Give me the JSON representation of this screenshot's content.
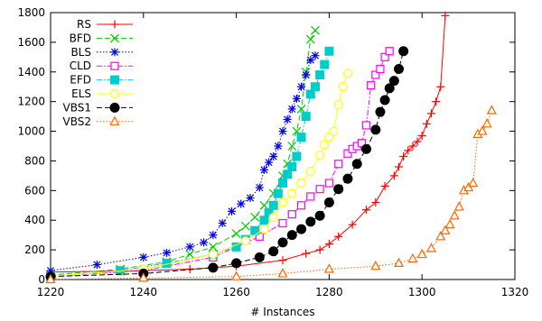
{
  "chart_data": {
    "type": "line",
    "title": "",
    "xlabel": "# Instances",
    "ylabel": "",
    "xlim": [
      1220,
      1320
    ],
    "ylim": [
      0,
      1800
    ],
    "xticks": [
      1220,
      1240,
      1260,
      1280,
      1300,
      1320
    ],
    "yticks": [
      0,
      200,
      400,
      600,
      800,
      1000,
      1200,
      1400,
      1600,
      1800
    ],
    "grid": false,
    "legend_position": "top-left",
    "series": [
      {
        "name": "RS",
        "color": "#ff0000",
        "marker": "plus",
        "dash": "solid",
        "x": [
          1220,
          1240,
          1250,
          1260,
          1270,
          1275,
          1278,
          1280,
          1282,
          1285,
          1288,
          1290,
          1292,
          1294,
          1295,
          1296,
          1297,
          1298,
          1299,
          1300,
          1301,
          1302,
          1303,
          1304,
          1305
        ],
        "y": [
          50,
          60,
          70,
          90,
          130,
          175,
          200,
          240,
          290,
          370,
          470,
          520,
          630,
          700,
          760,
          830,
          870,
          900,
          930,
          970,
          1050,
          1120,
          1200,
          1300,
          1780
        ]
      },
      {
        "name": "BFD",
        "color": "#00cc00",
        "marker": "x",
        "dash": "dashed",
        "x": [
          1220,
          1235,
          1245,
          1250,
          1255,
          1260,
          1262,
          1264,
          1266,
          1268,
          1270,
          1271,
          1272,
          1273,
          1274,
          1275,
          1276,
          1277
        ],
        "y": [
          30,
          70,
          120,
          170,
          220,
          310,
          360,
          420,
          500,
          580,
          700,
          780,
          900,
          1000,
          1150,
          1400,
          1620,
          1680
        ]
      },
      {
        "name": "BLS",
        "color": "#0000ee",
        "marker": "star",
        "dash": "dotted",
        "x": [
          1220,
          1230,
          1240,
          1245,
          1250,
          1253,
          1255,
          1257,
          1259,
          1261,
          1263,
          1265,
          1266,
          1267,
          1268,
          1269,
          1270,
          1271,
          1272,
          1273,
          1274,
          1275,
          1276,
          1277
        ],
        "y": [
          60,
          100,
          150,
          180,
          220,
          250,
          300,
          380,
          460,
          510,
          550,
          620,
          740,
          790,
          830,
          900,
          1000,
          1080,
          1150,
          1220,
          1300,
          1380,
          1480,
          1510
        ]
      },
      {
        "name": "CLD",
        "color": "#ff00ff",
        "marker": "square-open",
        "dash": "dashdot",
        "x": [
          1220,
          1240,
          1255,
          1265,
          1270,
          1272,
          1274,
          1276,
          1278,
          1280,
          1282,
          1284,
          1285,
          1286,
          1287,
          1288,
          1289,
          1290,
          1291,
          1292,
          1293
        ],
        "y": [
          20,
          60,
          150,
          290,
          380,
          440,
          500,
          560,
          610,
          650,
          780,
          850,
          880,
          900,
          920,
          1040,
          1310,
          1380,
          1420,
          1500,
          1540
        ]
      },
      {
        "name": "EFD",
        "color": "#00cccc",
        "marker": "square-filled",
        "dash": "dashdot",
        "x": [
          1220,
          1235,
          1245,
          1255,
          1260,
          1262,
          1264,
          1266,
          1267,
          1268,
          1269,
          1270,
          1271,
          1272,
          1273,
          1274,
          1275,
          1276,
          1277,
          1278,
          1279,
          1280
        ],
        "y": [
          20,
          60,
          110,
          170,
          220,
          270,
          330,
          400,
          450,
          500,
          580,
          650,
          710,
          760,
          830,
          960,
          1100,
          1250,
          1300,
          1380,
          1450,
          1540
        ]
      },
      {
        "name": "ELS",
        "color": "#ffff00",
        "marker": "circle-open",
        "dash": "solid",
        "x": [
          1220,
          1240,
          1255,
          1262,
          1266,
          1268,
          1270,
          1272,
          1274,
          1276,
          1278,
          1279,
          1280,
          1281,
          1282,
          1283,
          1284
        ],
        "y": [
          20,
          70,
          170,
          260,
          340,
          420,
          520,
          580,
          650,
          730,
          840,
          910,
          960,
          1000,
          1180,
          1300,
          1390
        ]
      },
      {
        "name": "VBS1",
        "color": "#000000",
        "marker": "circle-filled",
        "dash": "dashed",
        "x": [
          1220,
          1240,
          1255,
          1260,
          1265,
          1268,
          1270,
          1272,
          1274,
          1276,
          1278,
          1280,
          1282,
          1284,
          1286,
          1288,
          1290,
          1291,
          1292,
          1293,
          1294,
          1295,
          1296
        ],
        "y": [
          20,
          40,
          80,
          110,
          150,
          190,
          250,
          300,
          340,
          390,
          430,
          520,
          610,
          680,
          780,
          880,
          1010,
          1130,
          1210,
          1290,
          1340,
          1420,
          1540
        ]
      },
      {
        "name": "VBS2",
        "color": "#ff6600",
        "marker": "triangle-open",
        "dash": "dotted",
        "x": [
          1220,
          1240,
          1260,
          1270,
          1280,
          1290,
          1295,
          1298,
          1300,
          1302,
          1304,
          1305,
          1306,
          1307,
          1308,
          1309,
          1310,
          1311,
          1312,
          1313,
          1314,
          1315
        ],
        "y": [
          0,
          10,
          20,
          40,
          70,
          90,
          110,
          140,
          170,
          210,
          290,
          330,
          370,
          430,
          490,
          600,
          620,
          650,
          980,
          1000,
          1050,
          1140
        ]
      }
    ]
  }
}
